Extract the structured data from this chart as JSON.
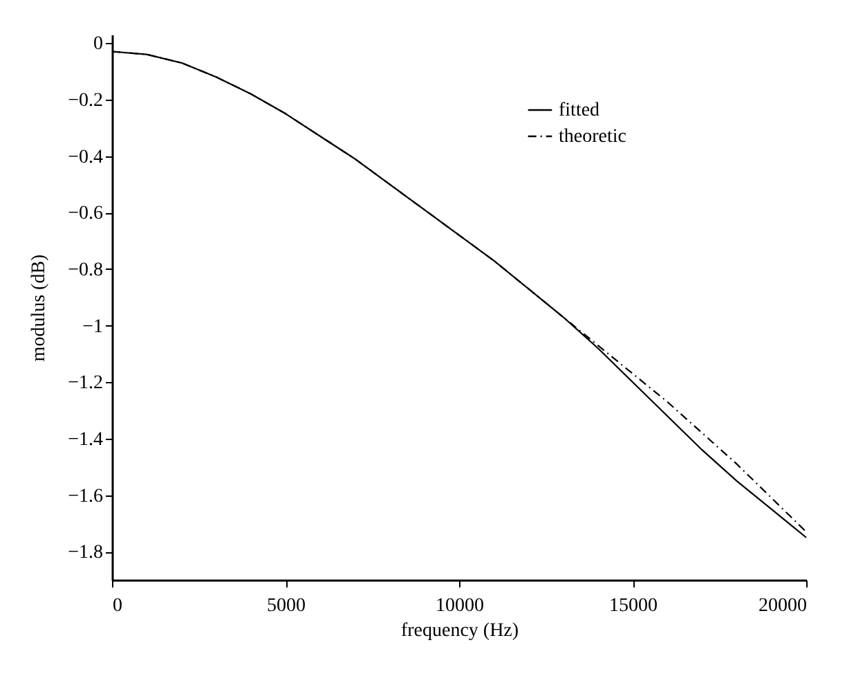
{
  "chart_data": {
    "type": "line",
    "xlabel": "frequency (Hz)",
    "ylabel": "modulus (dB)",
    "x": [
      0,
      1000,
      2000,
      3000,
      4000,
      5000,
      6000,
      7000,
      8000,
      9000,
      10000,
      11000,
      12000,
      13000,
      14000,
      15000,
      16000,
      17000,
      18000,
      19000,
      20000
    ],
    "series": [
      {
        "name": "fitted",
        "color": "#000000",
        "line_style": "solid",
        "values": [
          -0.03,
          -0.04,
          -0.07,
          -0.12,
          -0.18,
          -0.25,
          -0.33,
          -0.41,
          -0.5,
          -0.59,
          -0.68,
          -0.77,
          -0.87,
          -0.97,
          -1.08,
          -1.2,
          -1.32,
          -1.44,
          -1.55,
          -1.65,
          -1.75
        ]
      },
      {
        "name": "theoretic",
        "color": "#000000",
        "line_style": "dashed",
        "values": [
          -0.03,
          -0.04,
          -0.07,
          -0.12,
          -0.18,
          -0.25,
          -0.33,
          -0.41,
          -0.5,
          -0.59,
          -0.68,
          -0.77,
          -0.87,
          -0.97,
          -1.07,
          -1.17,
          -1.27,
          -1.38,
          -1.49,
          -1.61,
          -1.73
        ]
      }
    ],
    "xlim": [
      0,
      20000
    ],
    "xticks": [
      0,
      5000,
      10000,
      15000,
      20000
    ],
    "ylim": [
      -1.9,
      0.03
    ],
    "yticks": [
      0,
      -0.2,
      -0.4,
      -0.6,
      -0.8,
      -1,
      -1.2,
      -1.4,
      -1.6,
      -1.8
    ],
    "grid": false,
    "legend": "top right",
    "marker": "none"
  }
}
